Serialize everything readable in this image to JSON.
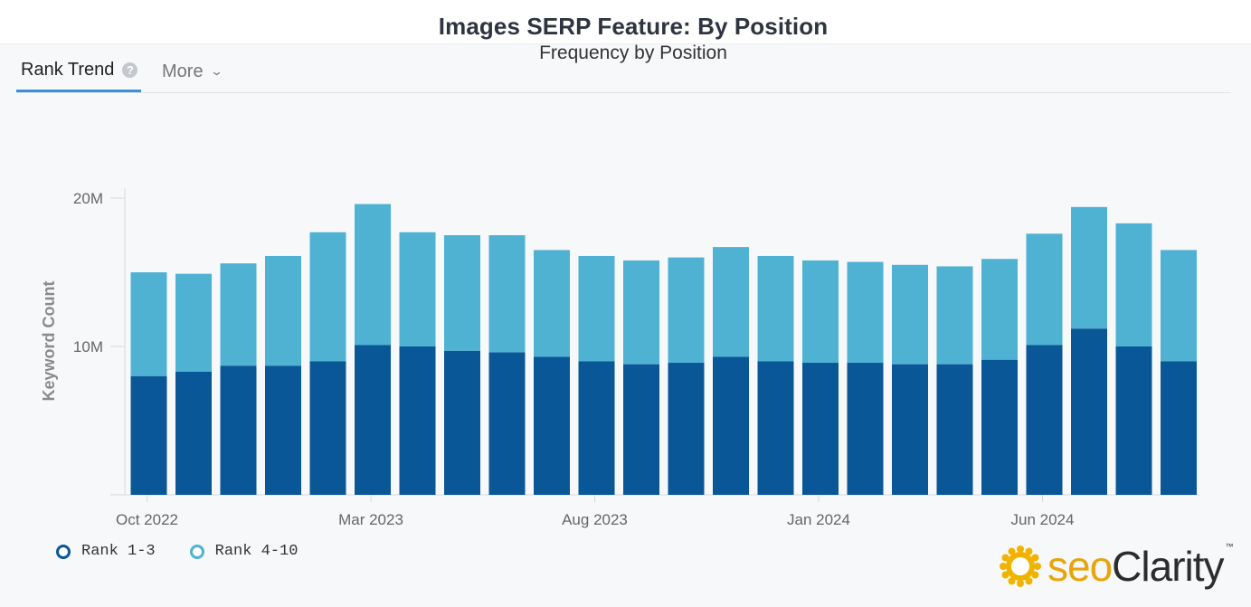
{
  "tabs": {
    "rank_trend": "Rank Trend",
    "help_glyph": "?",
    "more": "More",
    "more_chevron": "⌄"
  },
  "colors": {
    "rank_1_3": "#0a5798",
    "rank_4_10": "#4fb2d3",
    "axis": "#d5d9de",
    "tick_text": "#666666"
  },
  "logo": {
    "part1": "seo",
    "part2": "Clarity",
    "tm": "™"
  },
  "chart_data": {
    "type": "bar",
    "stacked": true,
    "title": "Images SERP Feature: By Position",
    "subtitle": "Frequency by Position",
    "ylabel": "Keyword Count",
    "xlabel": "",
    "ylim": [
      0,
      20000000
    ],
    "y_ticks": [
      {
        "value": 10000000,
        "label": "10M"
      },
      {
        "value": 20000000,
        "label": "20M"
      }
    ],
    "categories": [
      "2022-10",
      "2022-11",
      "2022-12",
      "2023-01",
      "2023-02",
      "2023-03",
      "2023-04",
      "2023-05",
      "2023-06",
      "2023-07",
      "2023-08",
      "2023-09",
      "2023-10",
      "2023-11",
      "2023-12",
      "2024-01",
      "2024-02",
      "2024-03",
      "2024-04",
      "2024-05",
      "2024-06",
      "2024-07",
      "2024-08",
      "2024-09"
    ],
    "x_tick_labels": [
      {
        "index": 0,
        "label": "Oct 2022"
      },
      {
        "index": 5,
        "label": "Mar 2023"
      },
      {
        "index": 10,
        "label": "Aug 2023"
      },
      {
        "index": 15,
        "label": "Jan 2024"
      },
      {
        "index": 20,
        "label": "Jun 2024"
      }
    ],
    "series": [
      {
        "name": "Rank 1-3",
        "values": [
          8000000,
          8300000,
          8700000,
          8700000,
          9000000,
          10100000,
          10000000,
          9700000,
          9600000,
          9300000,
          9000000,
          8800000,
          8900000,
          9300000,
          9000000,
          8900000,
          8900000,
          8800000,
          8800000,
          9100000,
          10100000,
          11200000,
          10000000,
          9000000
        ]
      },
      {
        "name": "Rank 4-10",
        "values": [
          7000000,
          6600000,
          6900000,
          7400000,
          8700000,
          9500000,
          7700000,
          7800000,
          7900000,
          7200000,
          7100000,
          7000000,
          7100000,
          7400000,
          7100000,
          6900000,
          6800000,
          6700000,
          6600000,
          6800000,
          7500000,
          8200000,
          8300000,
          7500000
        ]
      }
    ],
    "grid": false,
    "legend_position": "bottom-left"
  }
}
